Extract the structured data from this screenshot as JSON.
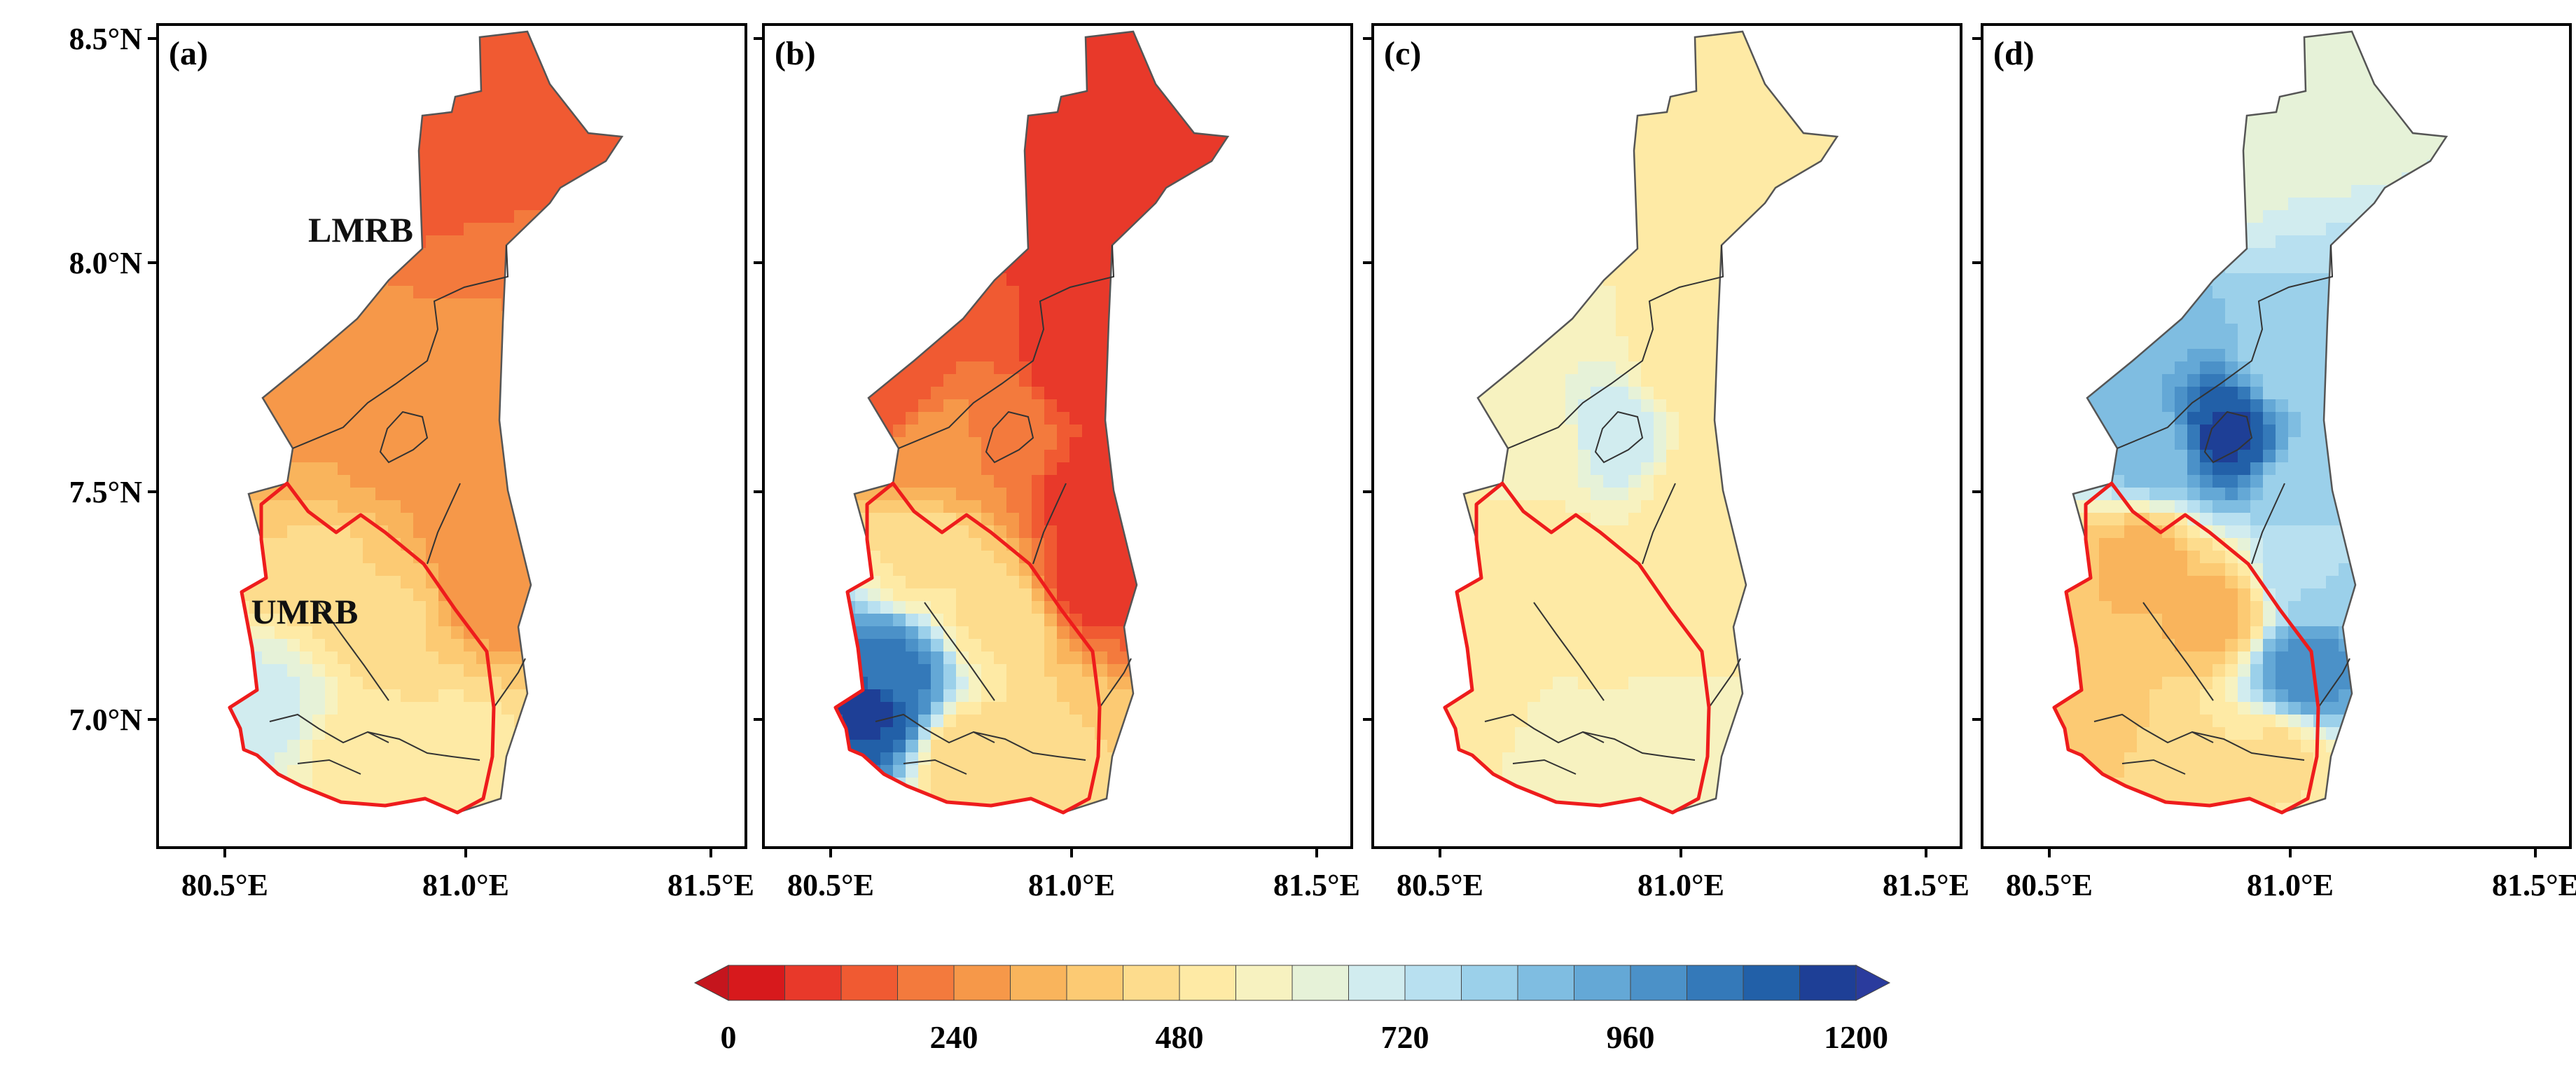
{
  "figure": {
    "panels": [
      {
        "id": "a",
        "label": "(a)",
        "show_lat_labels": true,
        "region_labels": [
          {
            "id": "lmrb",
            "text": "LMRB"
          },
          {
            "id": "umrb",
            "text": "UMRB"
          }
        ],
        "fields": {
          "lmrb_north": 130,
          "lmrb_west": 260,
          "lmrb_south": 300,
          "east_basin": 240,
          "small_basin": 260,
          "umrb": 430,
          "umrb_south": 500,
          "umrb_far_west": 680
        }
      },
      {
        "id": "b",
        "label": "(b)",
        "show_lat_labels": false,
        "region_labels": [],
        "fields": {
          "lmrb_north": 80,
          "lmrb_west": 120,
          "lmrb_south": 280,
          "east_basin": 90,
          "small_basin": 220,
          "umrb": 470,
          "umrb_south": 420,
          "umrb_far_west": 1150,
          "umrb_west_core": 1050
        }
      },
      {
        "id": "c",
        "label": "(c)",
        "show_lat_labels": false,
        "region_labels": [],
        "fields": {
          "lmrb_north": 480,
          "lmrb_west": 560,
          "lmrb_south": 560,
          "east_basin": 480,
          "small_basin": 720,
          "umrb": 490,
          "umrb_south": 600,
          "umrb_far_west": 520
        }
      },
      {
        "id": "d",
        "label": "(d)",
        "show_lat_labels": false,
        "region_labels": [],
        "fields": {
          "lmrb_north": 620,
          "lmrb_west": 860,
          "lmrb_south": 880,
          "east_basin": 780,
          "small_basin": 1150,
          "umrb": 340,
          "umrb_south": 470,
          "umrb_far_west": 360,
          "umrb_east_core": 1000
        }
      }
    ],
    "x_ticks": [
      "80.5°E",
      "81.0°E",
      "81.5°E"
    ],
    "y_ticks": [
      "8.5°N",
      "8.0°N",
      "7.5°N",
      "7.0°N"
    ],
    "colorbar": {
      "min": 0,
      "max": 1200,
      "step": 60,
      "tick_labels": [
        "0",
        "240",
        "480",
        "720",
        "960",
        "1200"
      ],
      "colors": [
        "#d7191c",
        "#e8392a",
        "#f05a32",
        "#f37a3d",
        "#f69849",
        "#f9b45c",
        "#fcca73",
        "#fddc8d",
        "#feeaa5",
        "#f7f2c0",
        "#e6f2d8",
        "#d1ecef",
        "#b8e0f0",
        "#9bd0ea",
        "#7fbde1",
        "#64a8d6",
        "#4b91c8",
        "#3479b9",
        "#2260a8",
        "#1e3f96"
      ],
      "under_color": "#c5151d",
      "over_color": "#2a3b9d"
    }
  }
}
